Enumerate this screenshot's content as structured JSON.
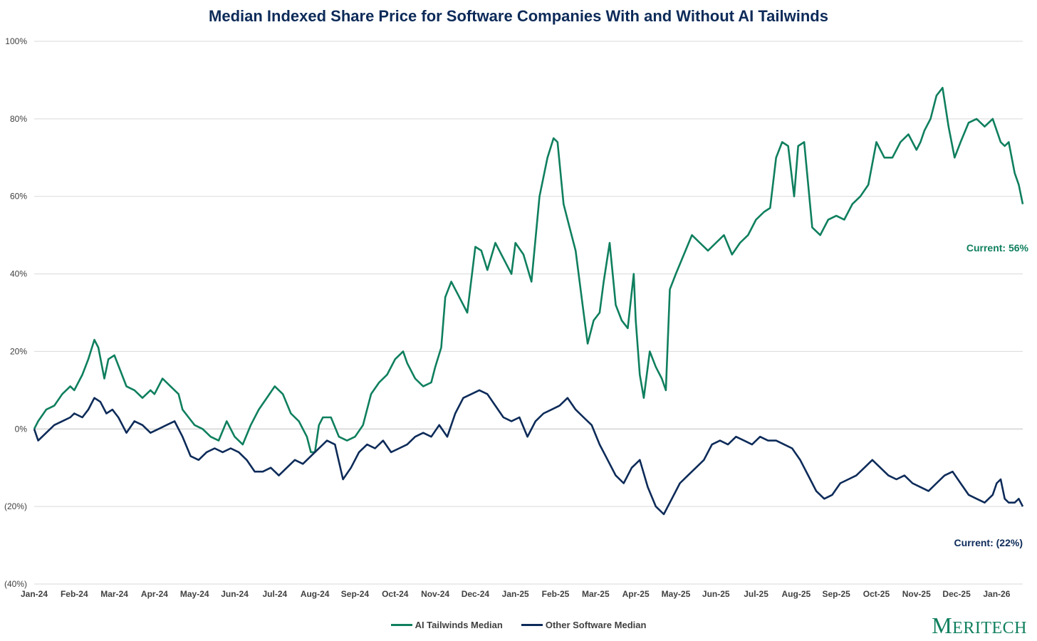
{
  "chart_data": {
    "type": "line",
    "title": "Median Indexed Share Price for Software Companies With and Without AI Tailwinds",
    "xlabel": "",
    "ylabel": "",
    "ylim": [
      -40,
      100
    ],
    "yticks": [
      100,
      80,
      60,
      40,
      20,
      0,
      -20,
      -40
    ],
    "ytick_labels": [
      "100%",
      "80%",
      "60%",
      "40%",
      "20%",
      "0%",
      "(20%)",
      "(40%)"
    ],
    "xtick_labels": [
      "Jan-24",
      "Feb-24",
      "Mar-24",
      "Apr-24",
      "May-24",
      "Jun-24",
      "Jul-24",
      "Aug-24",
      "Sep-24",
      "Oct-24",
      "Nov-24",
      "Dec-24",
      "Jan-25",
      "Feb-25",
      "Mar-25",
      "Apr-25",
      "May-25",
      "Jun-25",
      "Jul-25",
      "Aug-25",
      "Sep-25",
      "Oct-25",
      "Nov-25",
      "Dec-25",
      "Jan-26"
    ],
    "grid": true,
    "legend": "bottom",
    "series": [
      {
        "name": "AI Tailwinds Median",
        "color": "#0f7f5e",
        "x_month_index": [
          0,
          0.1,
          0.3,
          0.5,
          0.7,
          0.9,
          1.0,
          1.2,
          1.35,
          1.5,
          1.6,
          1.75,
          1.85,
          2.0,
          2.15,
          2.3,
          2.5,
          2.7,
          2.9,
          3.0,
          3.2,
          3.4,
          3.6,
          3.7,
          3.85,
          4.0,
          4.2,
          4.4,
          4.6,
          4.8,
          5.0,
          5.2,
          5.4,
          5.6,
          5.8,
          6.0,
          6.2,
          6.4,
          6.6,
          6.8,
          6.9,
          7.0,
          7.1,
          7.2,
          7.4,
          7.6,
          7.8,
          8.0,
          8.2,
          8.4,
          8.6,
          8.8,
          9.0,
          9.2,
          9.3,
          9.5,
          9.7,
          9.9,
          10.0,
          10.15,
          10.25,
          10.4,
          10.6,
          10.8,
          11.0,
          11.15,
          11.3,
          11.5,
          11.7,
          11.9,
          12.0,
          12.2,
          12.4,
          12.6,
          12.8,
          12.95,
          13.05,
          13.2,
          13.35,
          13.5,
          13.6,
          13.7,
          13.8,
          13.95,
          14.1,
          14.2,
          14.35,
          14.5,
          14.65,
          14.8,
          14.95,
          15.0,
          15.1,
          15.2,
          15.35,
          15.5,
          15.65,
          15.75,
          15.85,
          16.0,
          16.2,
          16.4,
          16.6,
          16.8,
          17.0,
          17.2,
          17.4,
          17.6,
          17.8,
          18.0,
          18.2,
          18.35,
          18.5,
          18.65,
          18.8,
          18.95,
          19.05,
          19.2,
          19.4,
          19.6,
          19.8,
          20.0,
          20.2,
          20.4,
          20.6,
          20.8,
          21.0,
          21.2,
          21.4,
          21.6,
          21.8,
          22.0,
          22.1,
          22.2,
          22.35,
          22.5,
          22.65,
          22.8,
          22.95,
          23.1,
          23.3,
          23.5,
          23.7,
          23.9,
          24.0,
          24.1,
          24.2,
          24.3,
          24.45,
          24.55,
          24.65
        ],
        "values": [
          0,
          2,
          5,
          6,
          9,
          11,
          10,
          14,
          18,
          23,
          21,
          13,
          18,
          19,
          15,
          11,
          10,
          8,
          10,
          9,
          13,
          11,
          9,
          5,
          3,
          1,
          0,
          -2,
          -3,
          2,
          -2,
          -4,
          1,
          5,
          8,
          11,
          9,
          4,
          2,
          -2,
          -6,
          -6,
          1,
          3,
          3,
          -2,
          -3,
          -2,
          1,
          9,
          12,
          14,
          18,
          20,
          17,
          13,
          11,
          12,
          16,
          21,
          34,
          38,
          34,
          30,
          47,
          46,
          41,
          48,
          44,
          40,
          48,
          45,
          38,
          60,
          70,
          75,
          74,
          58,
          52,
          46,
          38,
          30,
          22,
          28,
          30,
          38,
          48,
          32,
          28,
          26,
          40,
          28,
          14,
          8,
          20,
          16,
          13,
          10,
          36,
          40,
          45,
          50,
          48,
          46,
          48,
          50,
          45,
          48,
          50,
          54,
          56,
          57,
          70,
          74,
          73,
          60,
          73,
          74,
          52,
          50,
          54,
          55,
          54,
          58,
          60,
          63,
          74,
          70,
          70,
          74,
          76,
          72,
          74,
          77,
          80,
          86,
          88,
          78,
          70,
          74,
          79,
          80,
          78,
          80,
          77,
          74,
          73,
          74,
          66,
          63,
          58,
          55,
          52,
          50,
          54,
          56
        ]
      },
      {
        "name": "Other Software Median",
        "color": "#0d2b59",
        "x_month_index": [
          0,
          0.1,
          0.3,
          0.5,
          0.7,
          0.9,
          1.0,
          1.2,
          1.35,
          1.5,
          1.65,
          1.8,
          1.95,
          2.1,
          2.3,
          2.5,
          2.7,
          2.9,
          3.1,
          3.3,
          3.5,
          3.7,
          3.9,
          4.1,
          4.3,
          4.5,
          4.7,
          4.9,
          5.1,
          5.3,
          5.5,
          5.7,
          5.9,
          6.1,
          6.3,
          6.5,
          6.7,
          6.9,
          7.1,
          7.3,
          7.5,
          7.7,
          7.9,
          8.1,
          8.3,
          8.5,
          8.7,
          8.9,
          9.1,
          9.3,
          9.5,
          9.7,
          9.9,
          10.1,
          10.3,
          10.5,
          10.7,
          10.9,
          11.1,
          11.3,
          11.5,
          11.7,
          11.9,
          12.1,
          12.3,
          12.5,
          12.7,
          12.9,
          13.1,
          13.3,
          13.5,
          13.7,
          13.9,
          14.1,
          14.3,
          14.5,
          14.7,
          14.9,
          15.1,
          15.3,
          15.5,
          15.7,
          15.9,
          16.1,
          16.3,
          16.5,
          16.7,
          16.9,
          17.1,
          17.3,
          17.5,
          17.7,
          17.9,
          18.1,
          18.3,
          18.5,
          18.7,
          18.9,
          19.1,
          19.3,
          19.5,
          19.7,
          19.9,
          20.1,
          20.3,
          20.5,
          20.7,
          20.9,
          21.1,
          21.3,
          21.5,
          21.7,
          21.9,
          22.1,
          22.3,
          22.5,
          22.7,
          22.9,
          23.1,
          23.3,
          23.5,
          23.7,
          23.9,
          24.0,
          24.1,
          24.2,
          24.3,
          24.45,
          24.55,
          24.65
        ],
        "values": [
          0,
          -3,
          -1,
          1,
          2,
          3,
          4,
          3,
          5,
          8,
          7,
          4,
          5,
          3,
          -1,
          2,
          1,
          -1,
          0,
          1,
          2,
          -2,
          -7,
          -8,
          -6,
          -5,
          -6,
          -5,
          -6,
          -8,
          -11,
          -11,
          -10,
          -12,
          -10,
          -8,
          -9,
          -7,
          -5,
          -3,
          -4,
          -13,
          -10,
          -6,
          -4,
          -5,
          -3,
          -6,
          -5,
          -4,
          -2,
          -1,
          -2,
          1,
          -2,
          4,
          8,
          9,
          10,
          9,
          6,
          3,
          2,
          3,
          -2,
          2,
          4,
          5,
          6,
          8,
          5,
          3,
          1,
          -4,
          -8,
          -12,
          -14,
          -10,
          -8,
          -15,
          -20,
          -22,
          -18,
          -14,
          -12,
          -10,
          -8,
          -4,
          -3,
          -4,
          -2,
          -3,
          -4,
          -2,
          -3,
          -3,
          -4,
          -5,
          -8,
          -12,
          -16,
          -18,
          -17,
          -14,
          -13,
          -12,
          -10,
          -8,
          -10,
          -12,
          -13,
          -12,
          -14,
          -15,
          -16,
          -14,
          -12,
          -11,
          -14,
          -17,
          -18,
          -19,
          -17,
          -14,
          -13,
          -18,
          -19,
          -19,
          -18,
          -20,
          -24,
          -25,
          -26,
          -22
        ]
      }
    ],
    "annotations": [
      {
        "text": "Current: 56%",
        "series": "AI Tailwinds Median"
      },
      {
        "text": "Current: (22%)",
        "series": "Other Software Median"
      }
    ]
  },
  "branding": {
    "logo_text_big": "M",
    "logo_text_rest": "ERITECH"
  }
}
